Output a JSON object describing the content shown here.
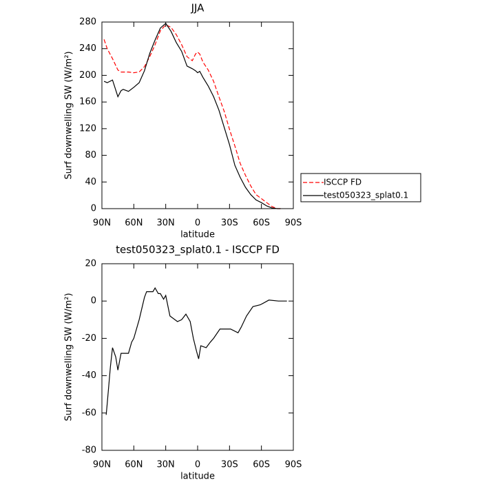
{
  "chart_data": [
    {
      "type": "line",
      "title": "JJA",
      "xlabel": "latitude",
      "ylabel": "Surf downwelling SW (W/m²)",
      "xlim": [
        90,
        -90
      ],
      "ylim": [
        0,
        280
      ],
      "xticks": [
        {
          "value": 90,
          "label": "90N"
        },
        {
          "value": 60,
          "label": "60N"
        },
        {
          "value": 30,
          "label": "30N"
        },
        0,
        {
          "value": -30,
          "label": "30S"
        },
        {
          "value": -60,
          "label": "60S"
        },
        {
          "value": -90,
          "label": "90S"
        }
      ],
      "yticks": [
        0,
        40,
        80,
        120,
        160,
        200,
        240,
        280
      ],
      "legend": "right",
      "x": [
        88,
        85,
        80,
        75,
        72,
        70,
        65,
        60,
        55,
        50,
        45,
        40,
        35,
        30,
        25,
        20,
        15,
        10,
        5,
        2,
        0,
        -2,
        -5,
        -10,
        -15,
        -20,
        -25,
        -30,
        -35,
        -40,
        -45,
        -50,
        -55,
        -60,
        -65,
        -70,
        -75,
        -78
      ],
      "series": [
        {
          "name": "ISCCP FD",
          "color": "#ff0000",
          "dashed": true,
          "values": [
            254,
            240,
            225,
            208,
            205,
            205,
            205,
            204,
            205,
            213,
            228,
            246,
            267,
            276,
            272,
            261,
            246,
            228,
            222,
            232,
            235,
            232,
            220,
            208,
            191,
            168,
            146,
            119,
            94,
            68,
            50,
            34,
            21,
            15,
            9,
            3,
            0,
            0
          ]
        },
        {
          "name": "test050323_splat0.1",
          "color": "#000000",
          "dashed": false,
          "values": [
            191,
            189,
            193,
            168,
            177,
            179,
            176,
            182,
            189,
            207,
            233,
            253,
            271,
            278,
            266,
            249,
            236,
            214,
            210,
            207,
            204,
            206,
            197,
            184,
            168,
            148,
            122,
            96,
            65,
            47,
            32,
            21,
            13,
            9,
            4,
            1,
            0,
            0
          ]
        }
      ]
    },
    {
      "type": "line",
      "title": "test050323_splat0.1 - ISCCP FD",
      "xlabel": "latitude",
      "ylabel": "Surf downwelling SW (W/m²)",
      "xlim": [
        90,
        -90
      ],
      "ylim": [
        -80,
        20
      ],
      "xticks": [
        {
          "value": 90,
          "label": "90N"
        },
        {
          "value": 60,
          "label": "60N"
        },
        {
          "value": 30,
          "label": "30N"
        },
        0,
        {
          "value": -30,
          "label": "30S"
        },
        {
          "value": -60,
          "label": "60S"
        },
        {
          "value": -90,
          "label": "90S"
        }
      ],
      "yticks": [
        -80,
        -60,
        -40,
        -20,
        0,
        20
      ],
      "x": [
        86,
        85,
        82,
        80,
        77,
        75,
        72,
        70,
        65,
        62,
        60,
        55,
        50,
        48,
        45,
        42,
        40,
        37,
        35,
        32,
        30,
        26,
        19,
        15,
        11,
        7,
        4,
        1,
        -1,
        -3,
        -8,
        -12,
        -15,
        -21,
        -31,
        -38,
        -41,
        -46,
        -52,
        -59,
        -67,
        -76,
        -84
      ],
      "series": [
        {
          "color": "#000000",
          "dashed": false,
          "values": [
            -61,
            -55,
            -35,
            -25,
            -30,
            -37,
            -28,
            -28,
            -28,
            -22,
            -20,
            -10,
            2,
            5,
            5,
            5,
            7,
            4,
            4,
            1,
            3,
            -8,
            -11,
            -10,
            -7,
            -11,
            -20,
            -27,
            -31,
            -24,
            -25,
            -22,
            -20,
            -15,
            -15,
            -17,
            -14,
            -8,
            -3,
            -2,
            0.5,
            0,
            0
          ]
        }
      ]
    }
  ]
}
